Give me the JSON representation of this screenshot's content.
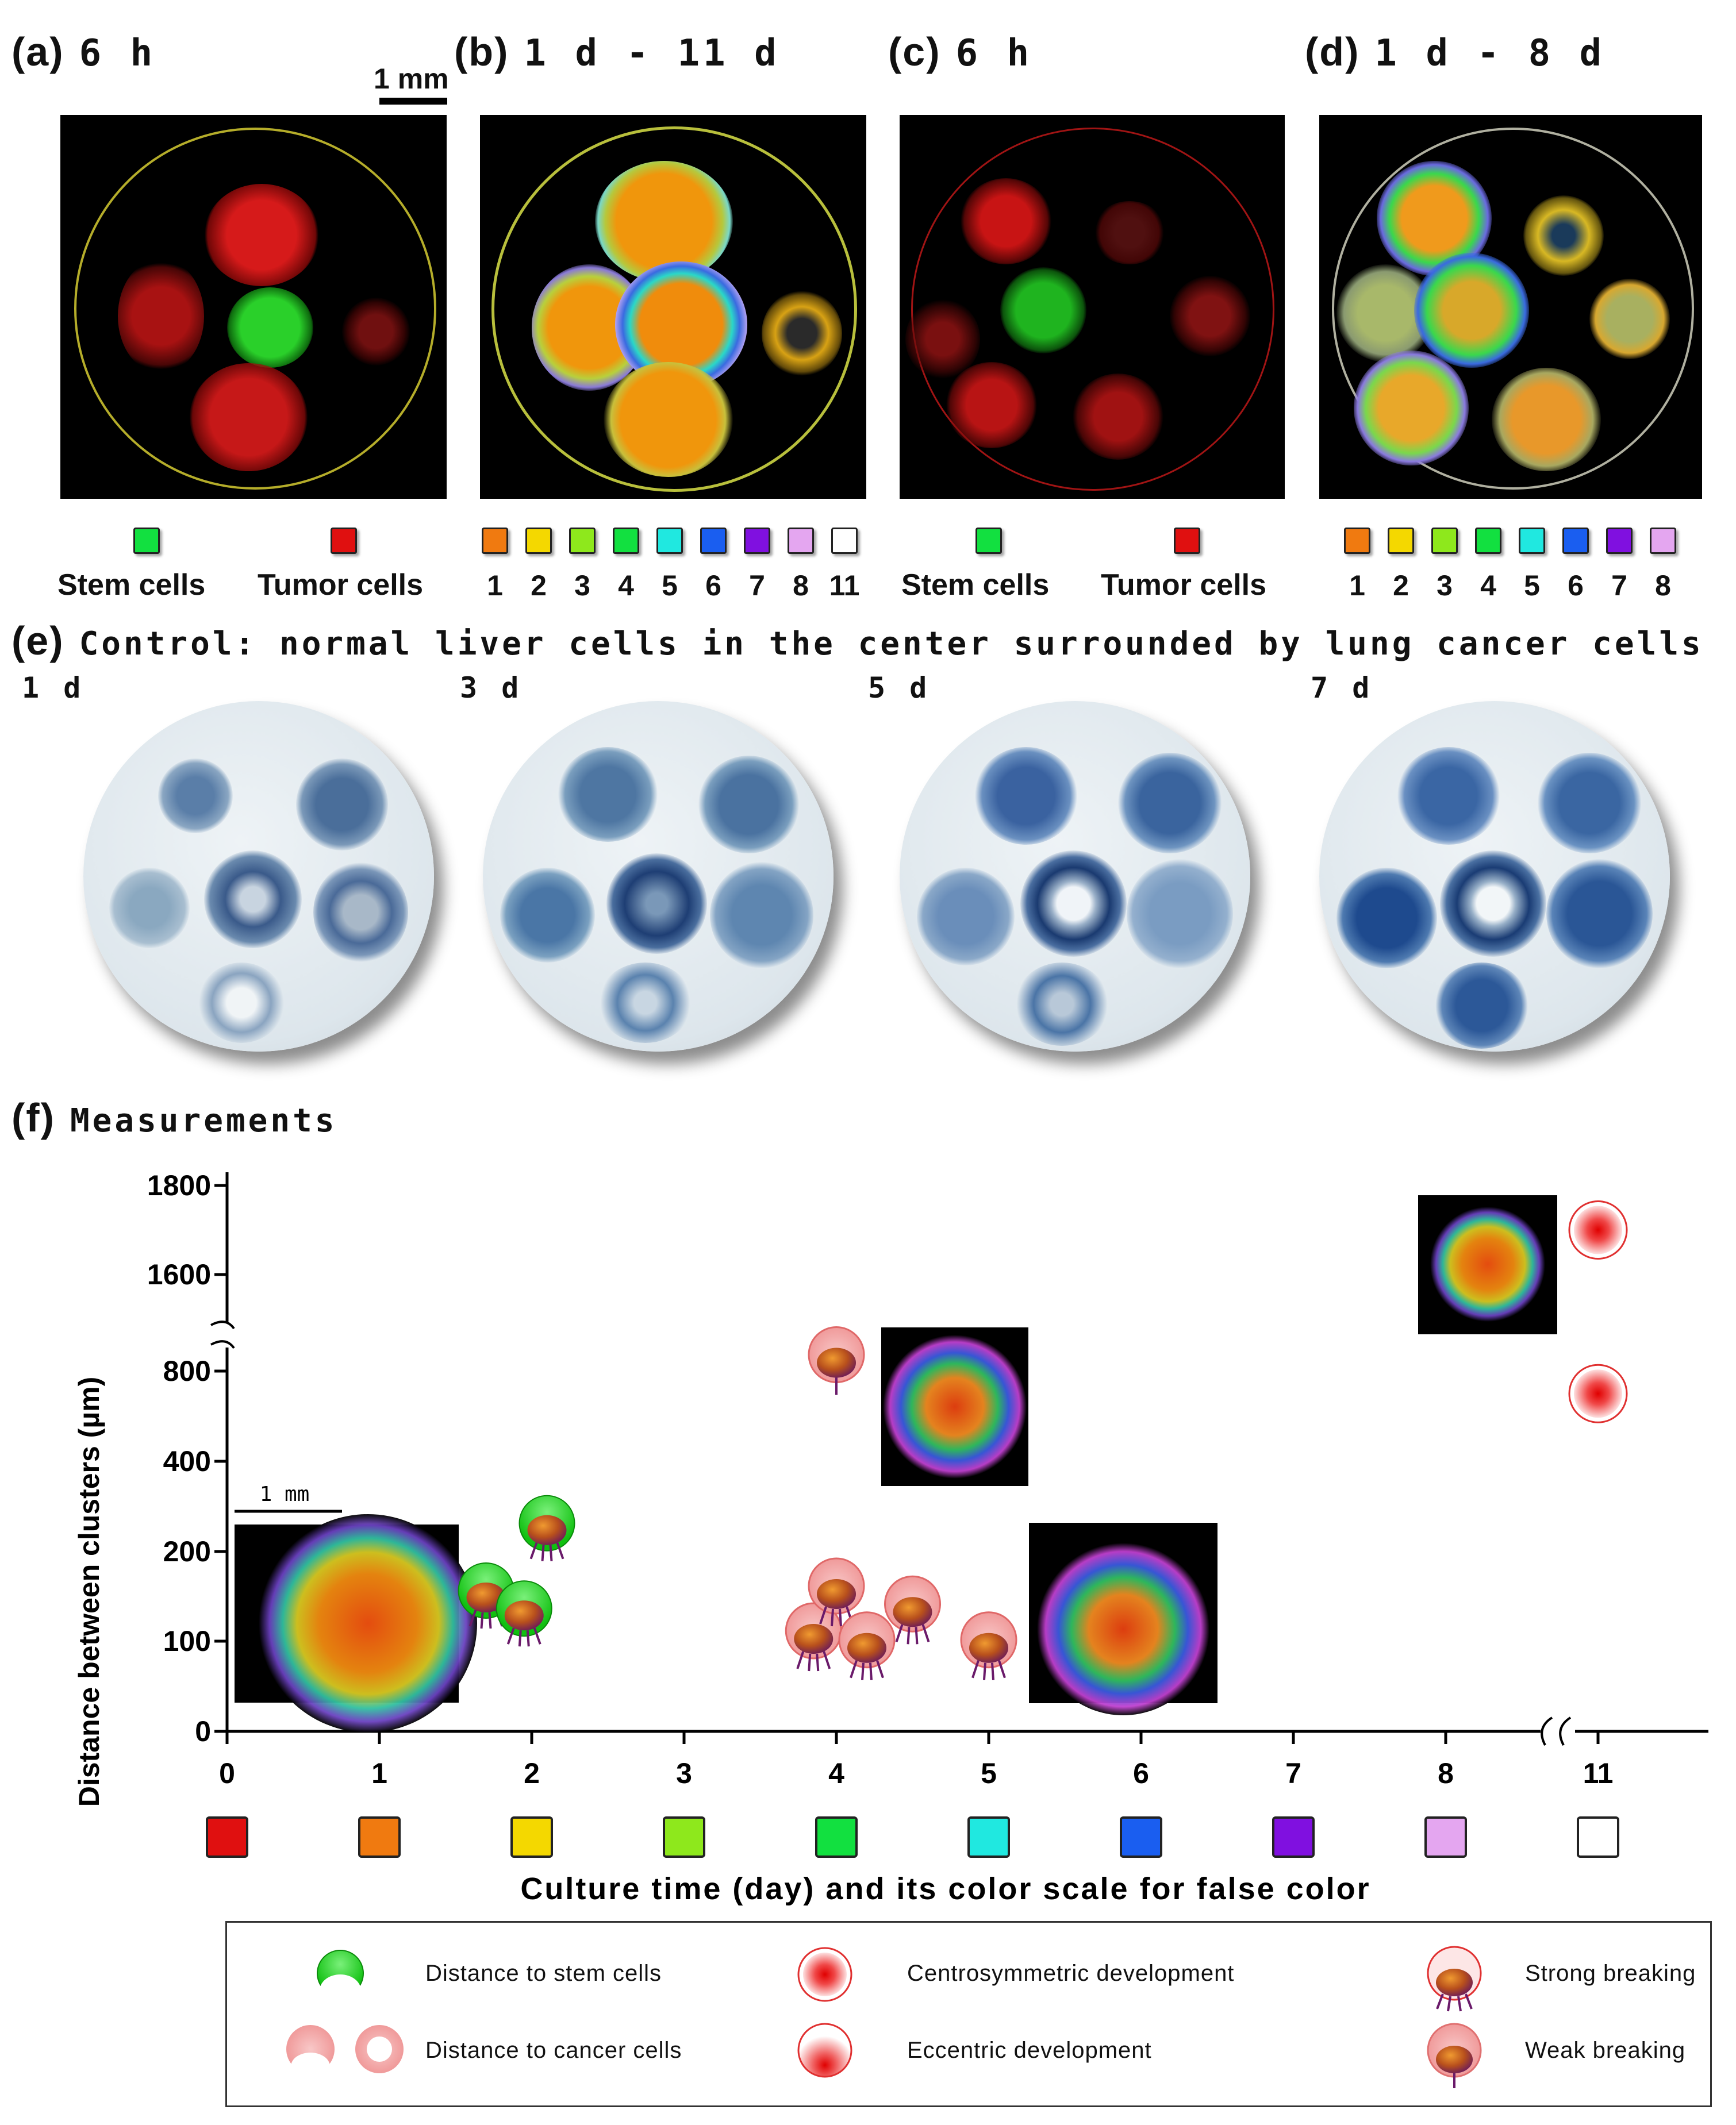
{
  "panels": {
    "a": {
      "letter": "(a)",
      "time": "6 h"
    },
    "b": {
      "letter": "(b)",
      "time": "1 d - 11 d"
    },
    "c": {
      "letter": "(c)",
      "time": "6 h"
    },
    "d": {
      "letter": "(d)",
      "time": "1 d - 8 d"
    },
    "scalebar_top": "1 mm"
  },
  "keys": {
    "stem": "Stem cells",
    "tumor": "Tumor cells",
    "b_days": [
      "1",
      "2",
      "3",
      "4",
      "5",
      "6",
      "7",
      "8",
      "11"
    ],
    "d_days": [
      "1",
      "2",
      "3",
      "4",
      "5",
      "6",
      "7",
      "8"
    ]
  },
  "panel_e": {
    "letter": "(e)",
    "title": "Control: normal liver cells in the center surrounded by lung cancer cells",
    "days": [
      "1 d",
      "3 d",
      "5 d",
      "7 d"
    ]
  },
  "panel_f": {
    "letter": "(f)",
    "title": "Measurements",
    "inset_scalebar": "1 mm"
  },
  "chart_data": {
    "type": "scatter",
    "title": "Measurements",
    "xlabel": "Culture time (day) and its color scale for false color",
    "ylabel": "Distance between clusters (µm)",
    "x_ticks": [
      "0",
      "1",
      "2",
      "3",
      "4",
      "5",
      "6",
      "7",
      "8",
      "11"
    ],
    "y_ticks": [
      "0",
      "100",
      "200",
      "400",
      "800",
      "1600",
      "1800"
    ],
    "axis_breaks": {
      "x": "8 to 11",
      "y": "800 to 1600"
    },
    "day_colors": [
      "#e01010",
      "#f07a10",
      "#f4d800",
      "#8ee81c",
      "#12e040",
      "#20e8e0",
      "#1a5ef0",
      "#8010e0",
      "#e4a6f0",
      "#ffffff"
    ],
    "series": [
      {
        "name": "Distance to stem cells",
        "x": [
          1.7,
          1.95,
          2.1
        ],
        "y": [
          150,
          130,
          250
        ]
      },
      {
        "name": "Distance to cancer cells",
        "x": [
          3.85,
          4.0,
          4.2,
          4.5,
          5.0,
          4.0,
          11.0,
          11.0
        ],
        "y": [
          100,
          150,
          90,
          130,
          90,
          850,
          700,
          1700
        ]
      }
    ],
    "legend": {
      "placement": "bottom",
      "items": [
        "Distance to stem cells",
        "Distance to cancer cells",
        "Centrosymmetric development",
        "Eccentric development",
        "Strong breaking",
        "Weak breaking"
      ]
    }
  }
}
